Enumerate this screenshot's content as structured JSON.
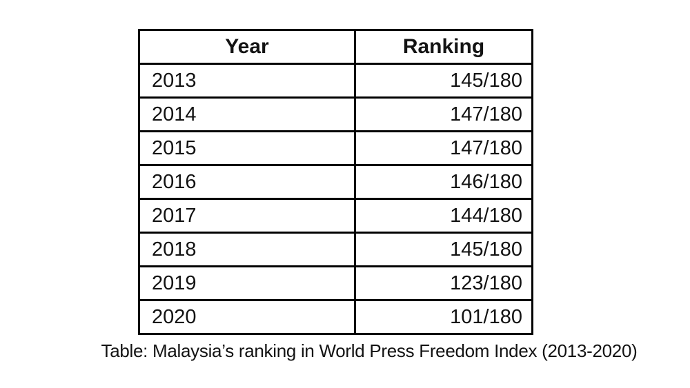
{
  "chart_data": {
    "type": "table",
    "title": "Table: Malaysia’s ranking in World Press Freedom Index (2013-2020)",
    "columns": [
      "Year",
      "Ranking"
    ],
    "rows": [
      {
        "year": "2013",
        "ranking": "145/180"
      },
      {
        "year": "2014",
        "ranking": "147/180"
      },
      {
        "year": "2015",
        "ranking": "147/180"
      },
      {
        "year": "2016",
        "ranking": "146/180"
      },
      {
        "year": "2017",
        "ranking": "144/180"
      },
      {
        "year": "2018",
        "ranking": "145/180"
      },
      {
        "year": "2019",
        "ranking": "123/180"
      },
      {
        "year": "2020",
        "ranking": "101/180"
      }
    ]
  },
  "table": {
    "header_year": "Year",
    "header_ranking": "Ranking"
  },
  "caption": "Table: Malaysia’s ranking in World Press Freedom Index (2013-2020)",
  "colors": {
    "border": "#000000",
    "text": "#131313",
    "background": "#ffffff"
  }
}
